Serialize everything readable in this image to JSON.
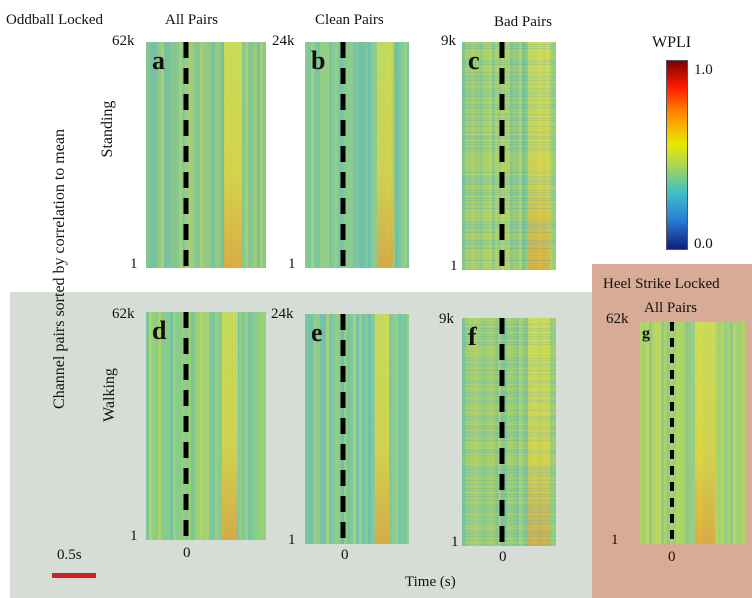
{
  "header": {
    "oddball_locked": "Oddball Locked",
    "all_pairs": "All Pairs",
    "clean_pairs": "Clean Pairs",
    "bad_pairs": "Bad Pairs"
  },
  "colorbar": {
    "title": "WPLI",
    "max_label": "1.0",
    "min_label": "0.0"
  },
  "y_axis_label": "Channel pairs sorted by correlation to mean",
  "row_labels": {
    "standing": "Standing",
    "walking": "Walking"
  },
  "heel": {
    "line1": "Heel Strike Locked",
    "line2": "All Pairs"
  },
  "x_axis_label": "Time (s)",
  "scale_bar_label": "0.5s",
  "panels": [
    {
      "letter": "a",
      "ytop": "62k",
      "ybottom": "1",
      "xtick": ""
    },
    {
      "letter": "b",
      "ytop": "24k",
      "ybottom": "1",
      "xtick": ""
    },
    {
      "letter": "c",
      "ytop": "9k",
      "ybottom": "1",
      "xtick": ""
    },
    {
      "letter": "d",
      "ytop": "62k",
      "ybottom": "1",
      "xtick": "0"
    },
    {
      "letter": "e",
      "ytop": "24k",
      "ybottom": "1",
      "xtick": "0"
    },
    {
      "letter": "f",
      "ytop": "9k",
      "ybottom": "1",
      "xtick": "0"
    },
    {
      "letter": "g",
      "ytop": "62k",
      "ybottom": "1",
      "xtick": "0"
    }
  ],
  "colors": {
    "scale_bar": "#cc2222",
    "walking_bg": "#d6ddd6",
    "heel_bg": "#d8ab96"
  }
}
